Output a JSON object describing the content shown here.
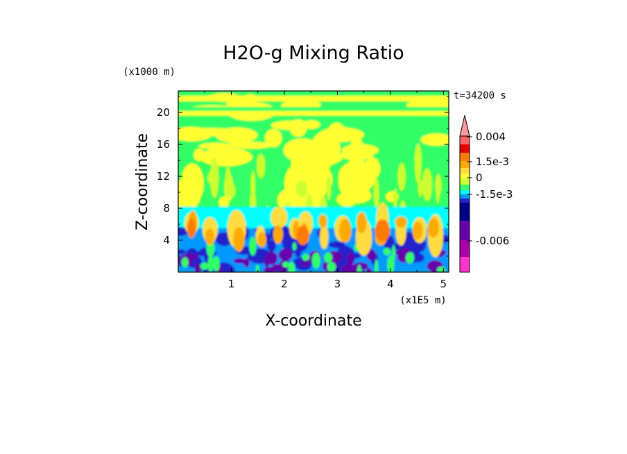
{
  "chart_data": {
    "type": "heatmap",
    "title": "H2O-g Mixing Ratio",
    "xlabel": "X-coordinate",
    "ylabel": "Z-coordinate",
    "x_unit": "(x1E5 m)",
    "y_unit": "(x1000 m)",
    "time_label": "t=34200 s",
    "xlim": [
      0,
      5.1
    ],
    "ylim": [
      0,
      22.7
    ],
    "x_ticks": [
      "1",
      "2",
      "3",
      "4",
      "5"
    ],
    "y_ticks": [
      "4",
      "8",
      "12",
      "16",
      "20"
    ],
    "colorbar": {
      "labels": [
        "0.004",
        "1.5e-3",
        "0",
        "-1.5e-3",
        "-0.006"
      ],
      "colors": [
        "#ff99a0",
        "#ff6666",
        "#e00000",
        "#ff7a00",
        "#ffaa00",
        "#ffdd40",
        "#ffff33",
        "#ccff33",
        "#33ff66",
        "#00ffff",
        "#0099ff",
        "#2222cc",
        "#000088",
        "#6600aa",
        "#aa00aa",
        "#ff33cc"
      ],
      "extend_top": true
    },
    "grid": false,
    "legend": "right colorbar"
  }
}
